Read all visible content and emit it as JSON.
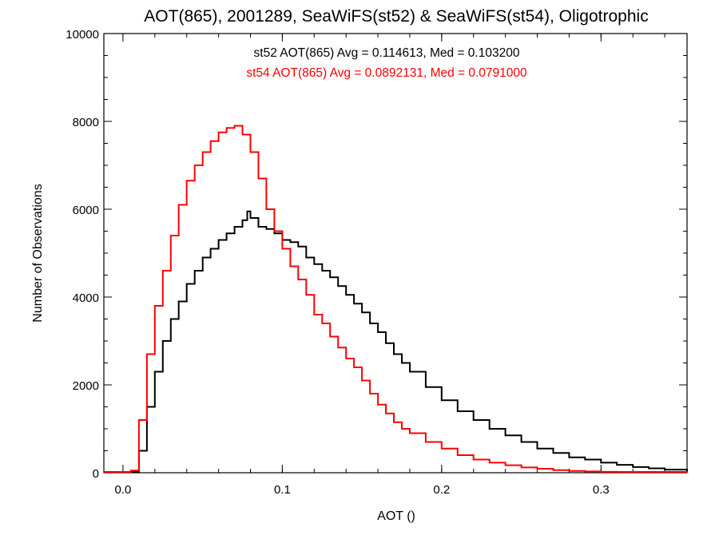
{
  "chart_data": {
    "type": "line",
    "title": "AOT(865), 2001289, SeaWiFS(st52) & SeaWiFS(st54), Oligotrophic",
    "xlabel": "AOT ()",
    "ylabel": "Number of Observations",
    "xlim": [
      -0.012,
      0.354
    ],
    "ylim": [
      0,
      10000
    ],
    "x_ticks": [
      0.0,
      0.1,
      0.2,
      0.3
    ],
    "x_tick_labels": [
      "0.0",
      "0.1",
      "0.2",
      "0.3"
    ],
    "y_ticks": [
      0,
      2000,
      4000,
      6000,
      8000,
      10000
    ],
    "y_tick_labels": [
      "0",
      "2000",
      "4000",
      "6000",
      "8000",
      "10000"
    ],
    "grid": false,
    "step": true,
    "annotations": [
      {
        "text": "st52 AOT(865) Avg = 0.114613, Med = 0.103200",
        "color": "#000000"
      },
      {
        "text": "st54 AOT(865) Avg = 0.0892131, Med = 0.0791000",
        "color": "#ff0000"
      }
    ],
    "series": [
      {
        "color": "#000000",
        "x": [
          0.0,
          0.005,
          0.01,
          0.015,
          0.02,
          0.025,
          0.03,
          0.035,
          0.04,
          0.045,
          0.05,
          0.055,
          0.06,
          0.065,
          0.07,
          0.075,
          0.078,
          0.08,
          0.085,
          0.09,
          0.095,
          0.1,
          0.105,
          0.11,
          0.115,
          0.12,
          0.125,
          0.13,
          0.135,
          0.14,
          0.145,
          0.15,
          0.155,
          0.16,
          0.165,
          0.17,
          0.175,
          0.18,
          0.19,
          0.2,
          0.21,
          0.22,
          0.23,
          0.24,
          0.25,
          0.26,
          0.27,
          0.28,
          0.29,
          0.3,
          0.31,
          0.32,
          0.33,
          0.34,
          0.354
        ],
        "values": [
          0,
          0,
          500,
          1500,
          2300,
          3000,
          3500,
          3900,
          4300,
          4600,
          4900,
          5100,
          5300,
          5450,
          5600,
          5750,
          5950,
          5800,
          5600,
          5550,
          5450,
          5300,
          5250,
          5150,
          4900,
          4750,
          4600,
          4450,
          4250,
          4050,
          3850,
          3650,
          3400,
          3200,
          2950,
          2700,
          2500,
          2300,
          1950,
          1650,
          1400,
          1200,
          1000,
          850,
          700,
          550,
          450,
          350,
          300,
          230,
          180,
          130,
          100,
          70,
          30
        ]
      },
      {
        "color": "#ff0000",
        "x": [
          0.0,
          0.005,
          0.01,
          0.015,
          0.02,
          0.025,
          0.03,
          0.035,
          0.04,
          0.045,
          0.05,
          0.055,
          0.06,
          0.065,
          0.07,
          0.075,
          0.08,
          0.085,
          0.09,
          0.095,
          0.1,
          0.105,
          0.11,
          0.115,
          0.12,
          0.125,
          0.13,
          0.135,
          0.14,
          0.145,
          0.15,
          0.155,
          0.16,
          0.165,
          0.17,
          0.175,
          0.18,
          0.19,
          0.2,
          0.21,
          0.22,
          0.23,
          0.24,
          0.25,
          0.26,
          0.27,
          0.28,
          0.29,
          0.3,
          0.31,
          0.32,
          0.354
        ],
        "values": [
          0,
          50,
          1200,
          2700,
          3800,
          4600,
          5400,
          6100,
          6650,
          7000,
          7300,
          7550,
          7750,
          7850,
          7900,
          7700,
          7300,
          6700,
          6000,
          5500,
          5100,
          4700,
          4400,
          4050,
          3600,
          3400,
          3100,
          2850,
          2600,
          2400,
          2100,
          1800,
          1550,
          1350,
          1150,
          1000,
          900,
          700,
          550,
          400,
          300,
          230,
          170,
          120,
          90,
          60,
          40,
          30,
          20,
          15,
          10,
          5
        ]
      }
    ]
  }
}
